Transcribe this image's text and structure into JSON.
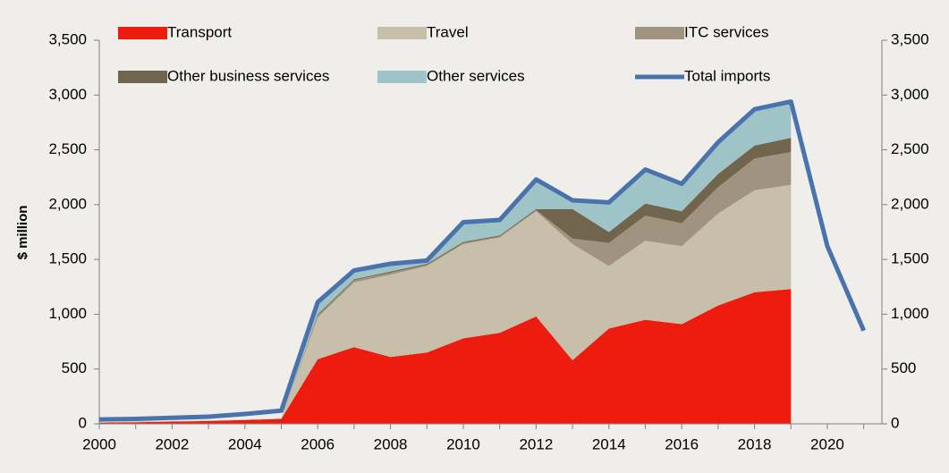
{
  "chart_data": {
    "type": "stacked_area_line",
    "y_label": "$ million",
    "x": [
      2000,
      2001,
      2002,
      2003,
      2004,
      2005,
      2006,
      2007,
      2008,
      2009,
      2010,
      2011,
      2012,
      2013,
      2014,
      2015,
      2016,
      2017,
      2018,
      2019,
      2020,
      2021
    ],
    "series": [
      {
        "name": "Transport",
        "kind": "area",
        "color": "#ee1c0e",
        "values": [
          10,
          15,
          20,
          25,
          35,
          45,
          590,
          700,
          610,
          650,
          780,
          830,
          980,
          580,
          870,
          950,
          910,
          1080,
          1200,
          1230,
          null,
          null
        ]
      },
      {
        "name": "Travel",
        "kind": "area",
        "color": "#c8bfaa",
        "values": [
          5,
          5,
          5,
          5,
          5,
          5,
          380,
          590,
          750,
          790,
          860,
          870,
          960,
          1060,
          570,
          720,
          710,
          840,
          930,
          950,
          null,
          null
        ]
      },
      {
        "name": "ITC services",
        "kind": "area",
        "color": "#a09380",
        "values": [
          0,
          0,
          0,
          0,
          0,
          0,
          20,
          20,
          20,
          10,
          10,
          10,
          10,
          50,
          210,
          230,
          210,
          240,
          290,
          300,
          null,
          null
        ]
      },
      {
        "name": "Other business services",
        "kind": "area",
        "color": "#72654e",
        "values": [
          0,
          0,
          0,
          0,
          0,
          0,
          10,
          10,
          10,
          10,
          10,
          10,
          10,
          270,
          100,
          110,
          110,
          120,
          120,
          130,
          null,
          null
        ]
      },
      {
        "name": "Other services",
        "kind": "area",
        "color": "#9fc4c8",
        "values": [
          0,
          0,
          0,
          0,
          0,
          0,
          110,
          80,
          70,
          30,
          180,
          140,
          270,
          80,
          270,
          310,
          250,
          290,
          330,
          330,
          null,
          null
        ]
      },
      {
        "name": "Total imports",
        "kind": "line",
        "color": "#4a72ad",
        "values": [
          40,
          45,
          55,
          65,
          90,
          120,
          1110,
          1400,
          1460,
          1490,
          1840,
          1860,
          2230,
          2040,
          2020,
          2320,
          2190,
          2570,
          2870,
          2940,
          1620,
          850
        ]
      }
    ],
    "xlim": [
      2000,
      2021.5
    ],
    "xticks": [
      2000,
      2002,
      2004,
      2006,
      2008,
      2010,
      2012,
      2014,
      2016,
      2018,
      2020
    ],
    "ylim": [
      0,
      3500
    ],
    "yticks": [
      0,
      500,
      {
        "value": 1000,
        "label": "1,000"
      },
      {
        "value": 1500,
        "label": "1,500"
      },
      {
        "value": 2000,
        "label": "2,000"
      },
      {
        "value": 2500,
        "label": "2,500"
      },
      {
        "value": 3000,
        "label": "3,000"
      },
      {
        "value": 3500,
        "label": "3,500"
      }
    ],
    "y2lim": [
      0,
      3500
    ],
    "y2ticks": [
      0,
      500,
      {
        "value": 1000,
        "label": "1,000"
      },
      {
        "value": 1500,
        "label": "1,500"
      },
      {
        "value": 2000,
        "label": "2,000"
      },
      {
        "value": 2500,
        "label": "2,500"
      },
      {
        "value": 3000,
        "label": "3,000"
      },
      {
        "value": 3500,
        "label": "3,500"
      }
    ]
  }
}
